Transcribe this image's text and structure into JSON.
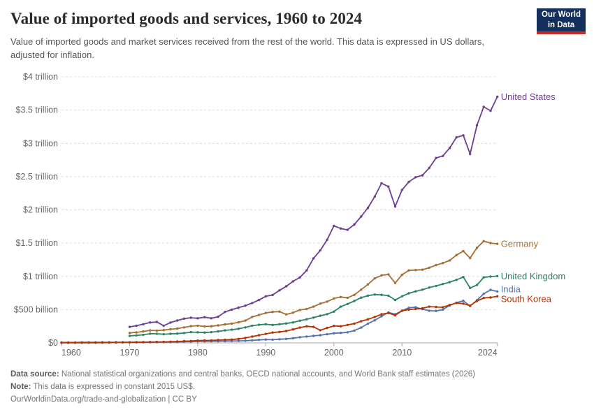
{
  "header": {
    "title": "Value of imported goods and services, 1960 to 2024",
    "subtitle": "Value of imported goods and market services received from the rest of the world. This data is expressed in US dollars, adjusted for inflation.",
    "logo": {
      "line1": "Our World",
      "line2": "in Data",
      "bg_color": "#12305B",
      "accent_color": "#CE2A1E"
    }
  },
  "footer": {
    "source_label": "Data source:",
    "source_text": " National statistical organizations and central banks, OECD national accounts, and World Bank staff estimates (2026)",
    "note_label": "Note:",
    "note_text": " This data is expressed in constant 2015 US$.",
    "citation": "OurWorldinData.org/trade-and-globalization | CC BY"
  },
  "chart_data": {
    "type": "line",
    "title": "Value of imported goods and services, 1960 to 2024",
    "unit": "constant 2015 US$",
    "xlim": [
      1960,
      2024
    ],
    "ylim_billion": [
      0,
      4000
    ],
    "grid": "horizontal-dashed",
    "legend_position": "end-of-line-labels",
    "x_ticks": [
      1960,
      1970,
      1980,
      1990,
      2000,
      2010,
      2024
    ],
    "y_ticks": [
      {
        "value_billion": 0,
        "label": "$0"
      },
      {
        "value_billion": 500,
        "label": "$500 billion"
      },
      {
        "value_billion": 1000,
        "label": "$1 trillion"
      },
      {
        "value_billion": 1500,
        "label": "$1.5 trillion"
      },
      {
        "value_billion": 2000,
        "label": "$2 trillion"
      },
      {
        "value_billion": 2500,
        "label": "$2.5 trillion"
      },
      {
        "value_billion": 3000,
        "label": "$3 trillion"
      },
      {
        "value_billion": 3500,
        "label": "$3.5 trillion"
      },
      {
        "value_billion": 4000,
        "label": "$4 trillion"
      }
    ],
    "series": [
      {
        "name": "United States",
        "color": "#6D3E91",
        "start_year": 1970,
        "values_billion_usd": [
          240,
          258,
          280,
          307,
          315,
          258,
          305,
          336,
          364,
          378,
          370,
          386,
          370,
          393,
          465,
          500,
          530,
          560,
          600,
          645,
          700,
          720,
          790,
          850,
          925,
          985,
          1090,
          1270,
          1390,
          1550,
          1760,
          1720,
          1700,
          1780,
          1900,
          2030,
          2200,
          2400,
          2350,
          2050,
          2300,
          2420,
          2490,
          2520,
          2630,
          2780,
          2810,
          2930,
          3090,
          3120,
          2840,
          3270,
          3550,
          3490,
          3700
        ]
      },
      {
        "name": "Germany",
        "color": "#A56E32",
        "start_year": 1970,
        "values_billion_usd": [
          150,
          158,
          172,
          188,
          185,
          192,
          205,
          215,
          232,
          252,
          258,
          248,
          250,
          262,
          278,
          290,
          310,
          335,
          390,
          420,
          450,
          465,
          470,
          428,
          455,
          495,
          510,
          545,
          590,
          620,
          668,
          690,
          678,
          722,
          800,
          880,
          970,
          1015,
          1030,
          900,
          1025,
          1090,
          1095,
          1100,
          1130,
          1170,
          1200,
          1240,
          1320,
          1380,
          1275,
          1430,
          1530,
          1500,
          1490
        ]
      },
      {
        "name": "United Kingdom",
        "color": "#2C8465",
        "start_year": 1970,
        "values_billion_usd": [
          105,
          112,
          122,
          138,
          138,
          130,
          136,
          140,
          148,
          162,
          160,
          155,
          162,
          172,
          188,
          198,
          212,
          232,
          258,
          272,
          280,
          270,
          280,
          292,
          308,
          333,
          355,
          380,
          408,
          432,
          470,
          545,
          585,
          630,
          680,
          710,
          727,
          722,
          710,
          645,
          700,
          745,
          775,
          800,
          832,
          857,
          885,
          913,
          948,
          990,
          825,
          870,
          985,
          997,
          1004
        ]
      },
      {
        "name": "India",
        "color": "#5573AA",
        "start_year": 1960,
        "values_billion_usd": [
          7,
          7,
          7.5,
          8,
          8.5,
          8.5,
          9,
          9.5,
          9,
          9,
          9.5,
          10,
          10,
          11,
          12,
          13,
          13,
          15,
          17,
          19,
          22,
          23,
          24,
          25,
          26,
          28,
          30,
          33,
          38,
          45,
          50,
          48,
          55,
          60,
          70,
          85,
          95,
          105,
          115,
          130,
          145,
          150,
          160,
          185,
          230,
          290,
          340,
          400,
          458,
          430,
          483,
          528,
          535,
          507,
          483,
          480,
          500,
          563,
          605,
          633,
          553,
          640,
          738,
          797,
          773
        ]
      },
      {
        "name": "South Korea",
        "color": "#B13507",
        "start_year": 1960,
        "values_billion_usd": [
          1,
          1.2,
          1.5,
          2,
          2,
          2.5,
          3.5,
          4.5,
          6,
          7,
          8,
          9,
          10,
          13,
          15,
          15,
          18,
          21,
          26,
          28,
          35,
          37,
          38,
          42,
          46,
          50,
          60,
          75,
          95,
          115,
          135,
          155,
          165,
          178,
          203,
          230,
          250,
          240,
          190,
          225,
          255,
          250,
          270,
          290,
          325,
          355,
          390,
          430,
          448,
          415,
          483,
          500,
          510,
          520,
          545,
          540,
          535,
          570,
          600,
          590,
          560,
          630,
          675,
          682,
          700
        ]
      }
    ]
  }
}
